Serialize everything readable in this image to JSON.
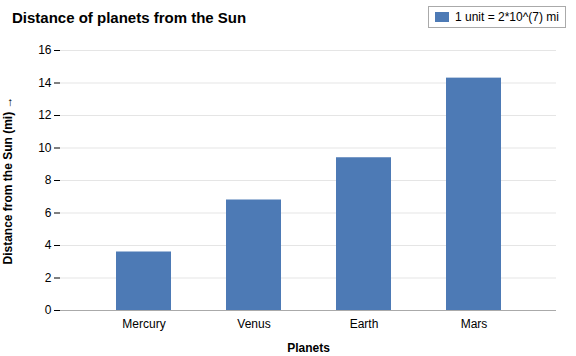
{
  "chart_data": {
    "type": "bar",
    "title": "Distance of planets from the Sun",
    "xlabel": "Planets",
    "ylabel": "Distance from the Sun (mi)",
    "categories": [
      "Mercury",
      "Venus",
      "Earth",
      "Mars"
    ],
    "series": [
      {
        "name": "1 unit = 2*10^(7) mi",
        "color": "#4d7ab5",
        "values": [
          3.6,
          6.8,
          9.4,
          14.3
        ]
      }
    ],
    "ylim": [
      0,
      16
    ],
    "yticks": [
      0,
      2,
      4,
      6,
      8,
      10,
      12,
      14,
      16
    ],
    "grid": true,
    "legend": "upper right"
  }
}
